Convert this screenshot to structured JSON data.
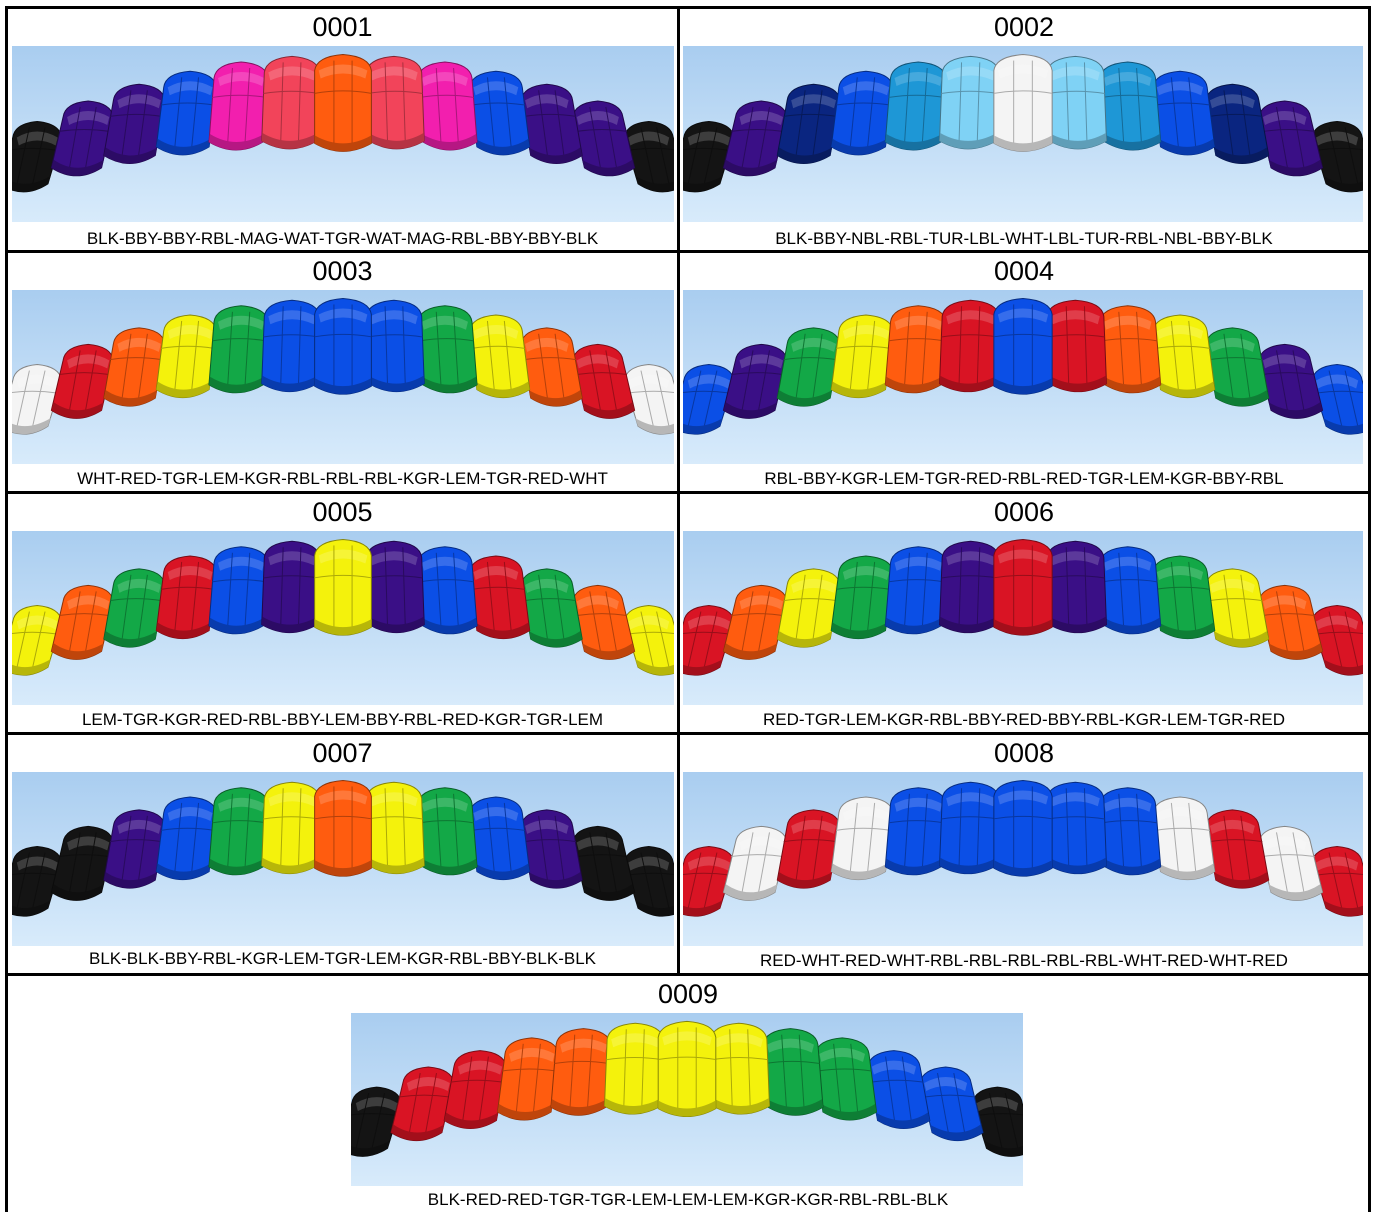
{
  "palette": {
    "BLK": "#141414",
    "BBY": "#3a0f86",
    "NBL": "#0a2580",
    "RBL": "#0b4fe6",
    "TUR": "#1e97d6",
    "LBL": "#7fd2f5",
    "WHT": "#f4f4f4",
    "MAG": "#f21fae",
    "WAT": "#f2445a",
    "TGR": "#ff5c0f",
    "RED": "#d91424",
    "LEM": "#f4f20c",
    "KGR": "#13a847"
  },
  "sky": {
    "top": "#a9cdf0",
    "bottom": "#d8ebfb"
  },
  "designs": [
    {
      "code": "0001",
      "colors": [
        "BLK",
        "BBY",
        "BBY",
        "RBL",
        "MAG",
        "WAT",
        "TGR",
        "WAT",
        "MAG",
        "RBL",
        "BBY",
        "BBY",
        "BLK"
      ],
      "caption": "BLK-BBY-BBY-RBL-MAG-WAT-TGR-WAT-MAG-RBL-BBY-BBY-BLK"
    },
    {
      "code": "0002",
      "colors": [
        "BLK",
        "BBY",
        "NBL",
        "RBL",
        "TUR",
        "LBL",
        "WHT",
        "LBL",
        "TUR",
        "RBL",
        "NBL",
        "BBY",
        "BLK"
      ],
      "caption": "BLK-BBY-NBL-RBL-TUR-LBL-WHT-LBL-TUR-RBL-NBL-BBY-BLK"
    },
    {
      "code": "0003",
      "colors": [
        "WHT",
        "RED",
        "TGR",
        "LEM",
        "KGR",
        "RBL",
        "RBL",
        "RBL",
        "KGR",
        "LEM",
        "TGR",
        "RED",
        "WHT"
      ],
      "caption": "WHT-RED-TGR-LEM-KGR-RBL-RBL-RBL-KGR-LEM-TGR-RED-WHT"
    },
    {
      "code": "0004",
      "colors": [
        "RBL",
        "BBY",
        "KGR",
        "LEM",
        "TGR",
        "RED",
        "RBL",
        "RED",
        "TGR",
        "LEM",
        "KGR",
        "BBY",
        "RBL"
      ],
      "caption": "RBL-BBY-KGR-LEM-TGR-RED-RBL-RED-TGR-LEM-KGR-BBY-RBL"
    },
    {
      "code": "0005",
      "colors": [
        "LEM",
        "TGR",
        "KGR",
        "RED",
        "RBL",
        "BBY",
        "LEM",
        "BBY",
        "RBL",
        "RED",
        "KGR",
        "TGR",
        "LEM"
      ],
      "caption": "LEM-TGR-KGR-RED-RBL-BBY-LEM-BBY-RBL-RED-KGR-TGR-LEM"
    },
    {
      "code": "0006",
      "colors": [
        "RED",
        "TGR",
        "LEM",
        "KGR",
        "RBL",
        "BBY",
        "RED",
        "BBY",
        "RBL",
        "KGR",
        "LEM",
        "TGR",
        "RED"
      ],
      "caption": "RED-TGR-LEM-KGR-RBL-BBY-RED-BBY-RBL-KGR-LEM-TGR-RED"
    },
    {
      "code": "0007",
      "colors": [
        "BLK",
        "BLK",
        "BBY",
        "RBL",
        "KGR",
        "LEM",
        "TGR",
        "LEM",
        "KGR",
        "RBL",
        "BBY",
        "BLK",
        "BLK"
      ],
      "caption": "BLK-BLK-BBY-RBL-KGR-LEM-TGR-LEM-KGR-RBL-BBY-BLK-BLK"
    },
    {
      "code": "0008",
      "colors": [
        "RED",
        "WHT",
        "RED",
        "WHT",
        "RBL",
        "RBL",
        "RBL",
        "RBL",
        "RBL",
        "WHT",
        "RED",
        "WHT",
        "RED"
      ],
      "caption": "RED-WHT-RED-WHT-RBL-RBL-RBL-RBL-RBL-WHT-RED-WHT-RED"
    },
    {
      "code": "0009",
      "colors": [
        "BLK",
        "RED",
        "RED",
        "TGR",
        "TGR",
        "LEM",
        "LEM",
        "LEM",
        "KGR",
        "KGR",
        "RBL",
        "RBL",
        "BLK"
      ],
      "caption": "BLK-RED-RED-TGR-TGR-LEM-LEM-LEM-KGR-KGR-RBL-RBL-BLK"
    }
  ]
}
